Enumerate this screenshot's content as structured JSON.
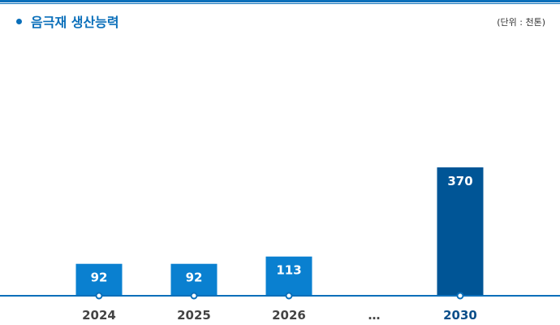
{
  "header": {
    "title": "음극재 생산능력",
    "unit": "(단위 : 천톤)"
  },
  "chart_data": {
    "type": "bar",
    "title": "음극재 생산능력",
    "unit": "(단위 : 천톤)",
    "categories": [
      "2024",
      "2025",
      "2026",
      "…",
      "2030"
    ],
    "values": [
      92,
      92,
      113,
      null,
      370
    ],
    "data_labels": [
      "92",
      "92",
      "113",
      "",
      "370"
    ],
    "ylim": [
      0,
      400
    ],
    "grid": false,
    "legend": "none",
    "colors": {
      "bar": "#0a80d0",
      "highlight_bar": "#005596",
      "axis": "#0a6fba",
      "title": "#0a6fba"
    },
    "highlight_category": "2030"
  }
}
